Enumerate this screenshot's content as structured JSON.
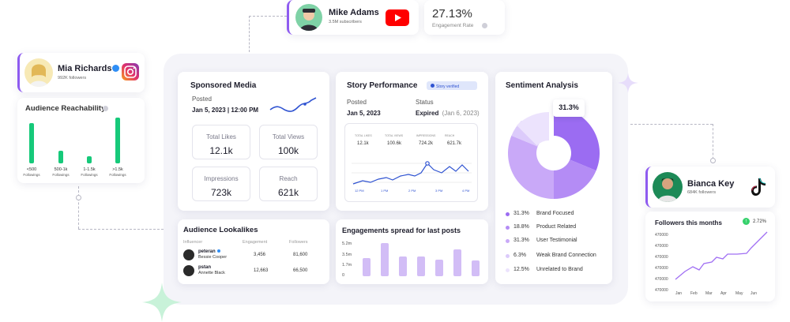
{
  "colors": {
    "accent": "#8e5bf0",
    "green": "#16c97a",
    "lavender": "#c9b2f4",
    "light_purple": "#e6dafb"
  },
  "mike": {
    "name": "Mike Adams",
    "subs": "3.5M subscribers",
    "platform_icon": "youtube-icon"
  },
  "engagement": {
    "value": "27.13%",
    "label": "Engagement Rate"
  },
  "mia": {
    "name": "Mia Richards",
    "followers": "992K followers",
    "platform_icon": "instagram-icon"
  },
  "reach": {
    "title": "Audience Reachability",
    "bars": [
      {
        "label1": "<500",
        "label2": "Followings",
        "value": 0.88
      },
      {
        "label1": "500-1k",
        "label2": "Followings",
        "value": 0.28
      },
      {
        "label1": "1-1.5k",
        "label2": "Followings",
        "value": 0.16
      },
      {
        "label1": ">1.5k",
        "label2": "Followings",
        "value": 1.0
      }
    ]
  },
  "sponsored": {
    "title": "Sponsored Media",
    "posted_label": "Posted",
    "posted_value": "Jan 5, 2023 | 12:00 PM",
    "metrics": [
      {
        "label": "Total Likes",
        "value": "12.1k"
      },
      {
        "label": "Total Views",
        "value": "100k"
      },
      {
        "label": "Impressions",
        "value": "723k"
      },
      {
        "label": "Reach",
        "value": "621k"
      }
    ]
  },
  "story": {
    "title": "Story Performance",
    "badge": "Story verified",
    "posted_label": "Posted",
    "posted_value": "Jan 5, 2023",
    "status_label": "Status",
    "status_value": "Expired",
    "status_date": "(Jan 6, 2023)",
    "stats": [
      {
        "label": "TOTAL LIKES",
        "value": "12.1k"
      },
      {
        "label": "TOTAL VIEWS",
        "value": "100.6k"
      },
      {
        "label": "IMPRESSIONS",
        "value": "724.2k"
      },
      {
        "label": "REACH",
        "value": "621.7k"
      }
    ],
    "xticks": [
      "12 PM",
      "1 PM",
      "2 PM",
      "3 PM",
      "4 PM"
    ]
  },
  "sentiment": {
    "title": "Sentiment Analysis",
    "callout": "31.3%",
    "items": [
      {
        "pct": "31.3%",
        "name": "Brand Focused",
        "color": "#9b6cf2",
        "value": 31.3
      },
      {
        "pct": "18.8%",
        "name": "Product Related",
        "color": "#b48cf5",
        "value": 18.8
      },
      {
        "pct": "31.3%",
        "name": "User Testimonial",
        "color": "#c9a9f8",
        "value": 31.3
      },
      {
        "pct": "6.3%",
        "name": "Weak Brand Connection",
        "color": "#dccbfb",
        "value": 6.3
      },
      {
        "pct": "12.5%",
        "name": "Unrelated to Brand",
        "color": "#ece3fd",
        "value": 12.5
      }
    ]
  },
  "lookalikes": {
    "title": "Audience Lookalikes",
    "headers": [
      "Influencer",
      "Engagement",
      "Followers"
    ],
    "rows": [
      {
        "handle": "peteran",
        "name": "Bessie Cooper",
        "engagement": "3,456",
        "followers": "81,600",
        "verified": true
      },
      {
        "handle": "pstan",
        "name": "Annette Black",
        "engagement": "12,663",
        "followers": "66,500",
        "verified": false
      }
    ]
  },
  "engagements": {
    "title": "Engagements spread for last posts",
    "yticks": [
      "5.2m",
      "3.5m",
      "1.7m",
      "0"
    ],
    "bars": [
      0.55,
      1.0,
      0.6,
      0.6,
      0.5,
      0.82,
      0.48
    ]
  },
  "bianca": {
    "name": "Bianca Key",
    "followers": "684K followers",
    "platform_icon": "tiktok-icon"
  },
  "followers_chart": {
    "title": "Followers this months",
    "badge": "2.72%",
    "yticks": [
      "470000",
      "470000",
      "470000",
      "470000",
      "470000",
      "470000"
    ],
    "xticks": [
      "Jan",
      "Feb",
      "Mar",
      "Apr",
      "May",
      "Jun"
    ]
  }
}
